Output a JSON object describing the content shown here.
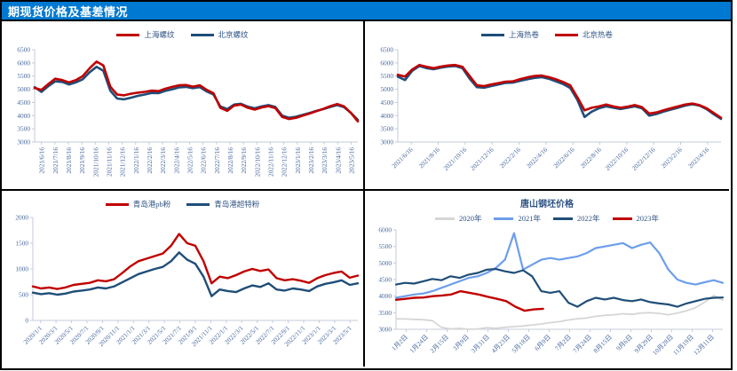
{
  "header": {
    "title": "期现货价格及基差情况"
  },
  "colors": {
    "header_bg": "#0079D2",
    "red": "#C00000",
    "navy": "#1F4E79",
    "cornflower": "#6D9EEB",
    "gray_2020": "#D6D6D6",
    "axis_line": "#C4CBD8",
    "tick_text": "#46679F",
    "legend_text": "#2F5384",
    "border": "#000000"
  },
  "chart_data": [
    {
      "type": "line",
      "name": "rebar-spot-price",
      "ylabel": "",
      "xlabel": "",
      "ylim": [
        3000,
        6500
      ],
      "yticks": [
        3000,
        3500,
        4000,
        4500,
        5000,
        5500,
        6000,
        6500
      ],
      "x_label_rotation": 90,
      "x_labels": [
        "2021/6/16",
        "2021/7/16",
        "2021/8/16",
        "2021/9/16",
        "2021/10/16",
        "2021/11/16",
        "2021/12/16",
        "2022/1/16",
        "2022/2/16",
        "2022/3/16",
        "2022/4/16",
        "2022/5/16",
        "2022/6/16",
        "2022/7/16",
        "2022/8/16",
        "2022/9/16",
        "2022/10/16",
        "2022/11/16",
        "2022/12/16",
        "2023/1/16",
        "2023/2/16",
        "2023/3/16",
        "2023/4/16",
        "2023/5/16"
      ],
      "series": [
        {
          "name": "上海螺纹",
          "color": "#C00000",
          "width": 2.6,
          "z": 2,
          "values": [
            5050,
            4980,
            5200,
            5400,
            5350,
            5260,
            5350,
            5500,
            5800,
            6050,
            5900,
            5100,
            4800,
            4770,
            4830,
            4870,
            4900,
            4950,
            4930,
            5020,
            5090,
            5150,
            5160,
            5100,
            5150,
            4980,
            4850,
            4300,
            4180,
            4380,
            4420,
            4300,
            4230,
            4310,
            4360,
            4290,
            3950,
            3870,
            3920,
            4000,
            4080,
            4170,
            4260,
            4360,
            4440,
            4350,
            4100,
            3780
          ]
        },
        {
          "name": "北京螺纹",
          "color": "#1F4E79",
          "width": 2.6,
          "z": 1,
          "values": [
            5080,
            4900,
            5120,
            5300,
            5280,
            5180,
            5260,
            5380,
            5650,
            5850,
            5700,
            4950,
            4650,
            4620,
            4680,
            4750,
            4800,
            4860,
            4850,
            4940,
            5000,
            5070,
            5090,
            5040,
            5080,
            4920,
            4800,
            4350,
            4250,
            4420,
            4450,
            4340,
            4280,
            4350,
            4400,
            4330,
            4000,
            3920,
            3960,
            4030,
            4100,
            4180,
            4250,
            4330,
            4400,
            4320,
            4100,
            3840
          ]
        }
      ]
    },
    {
      "type": "line",
      "name": "hot-coil-spot-price",
      "ylabel": "",
      "xlabel": "",
      "ylim": [
        3000,
        6500
      ],
      "yticks": [
        3000,
        3500,
        4000,
        4500,
        5000,
        5500,
        6000,
        6500
      ],
      "x_label_rotation": 45,
      "x_labels": [
        "2021/6/16",
        "2021/8/16",
        "2021/10/16",
        "2021/12/16",
        "2022/2/16",
        "2022/4/16",
        "2022/6/16",
        "2022/8/16",
        "2022/10/16",
        "2022/12/16",
        "2023/2/16",
        "2023/4/16"
      ],
      "series": [
        {
          "name": "上海热卷",
          "color": "#1F4E79",
          "width": 2.6,
          "z": 1,
          "values": [
            5480,
            5350,
            5700,
            5880,
            5800,
            5760,
            5820,
            5860,
            5880,
            5800,
            5400,
            5080,
            5060,
            5120,
            5180,
            5240,
            5250,
            5320,
            5380,
            5430,
            5460,
            5400,
            5300,
            5200,
            5050,
            4600,
            3950,
            4150,
            4280,
            4350,
            4300,
            4250,
            4300,
            4350,
            4280,
            4000,
            4060,
            4150,
            4230,
            4300,
            4380,
            4430,
            4380,
            4250,
            4050,
            3880
          ]
        },
        {
          "name": "北京热卷",
          "color": "#C00000",
          "width": 2.6,
          "z": 2,
          "values": [
            5550,
            5480,
            5750,
            5920,
            5850,
            5800,
            5860,
            5900,
            5920,
            5850,
            5500,
            5150,
            5120,
            5180,
            5230,
            5290,
            5300,
            5380,
            5450,
            5500,
            5520,
            5460,
            5380,
            5280,
            5150,
            4700,
            4200,
            4300,
            4350,
            4420,
            4350,
            4300,
            4340,
            4400,
            4320,
            4080,
            4120,
            4200,
            4280,
            4350,
            4420,
            4460,
            4400,
            4280,
            4100,
            3920
          ]
        }
      ]
    },
    {
      "type": "line",
      "name": "qingdao-port-iron-ore-price",
      "ylabel": "",
      "xlabel": "",
      "ylim": [
        0,
        2000
      ],
      "yticks": [
        0,
        500,
        1000,
        1500,
        2000
      ],
      "x_label_rotation": 45,
      "x_labels": [
        "2020/1/1",
        "2020/3/1",
        "2020/5/1",
        "2020/7/1",
        "2020/9/1",
        "2020/11/1",
        "2021/1/1",
        "2021/3/1",
        "2021/5/1",
        "2021/7/1",
        "2021/9/1",
        "2021/11/1",
        "2022/1/1",
        "2022/3/1",
        "2022/5/1",
        "2022/7/1",
        "2022/9/1",
        "2022/11/1",
        "2023/1/1",
        "2023/3/1",
        "2023/5/1"
      ],
      "series": [
        {
          "name": "青岛港pb粉",
          "color": "#C00000",
          "width": 2.4,
          "z": 2,
          "values": [
            660,
            620,
            640,
            610,
            640,
            690,
            710,
            730,
            780,
            760,
            800,
            920,
            1050,
            1150,
            1200,
            1250,
            1300,
            1450,
            1680,
            1500,
            1450,
            1150,
            720,
            850,
            820,
            880,
            950,
            1000,
            960,
            990,
            820,
            780,
            800,
            770,
            730,
            820,
            880,
            920,
            950,
            830,
            870
          ]
        },
        {
          "name": "青岛港超特粉",
          "color": "#1F4E79",
          "width": 2.4,
          "z": 1,
          "values": [
            540,
            510,
            530,
            500,
            520,
            560,
            580,
            600,
            640,
            620,
            660,
            740,
            820,
            900,
            950,
            1000,
            1040,
            1150,
            1320,
            1180,
            1100,
            850,
            470,
            600,
            570,
            550,
            620,
            680,
            650,
            720,
            600,
            580,
            620,
            600,
            570,
            660,
            710,
            740,
            780,
            690,
            720
          ]
        }
      ]
    },
    {
      "type": "line",
      "name": "tangshan-billet-price-seasonal",
      "title": "唐山钢坯价格",
      "ylabel": "",
      "xlabel": "",
      "ylim": [
        3000,
        6000
      ],
      "yticks": [
        3000,
        3500,
        4000,
        4500,
        5000,
        5500,
        6000
      ],
      "x_label_rotation": 45,
      "x_labels": [
        "1月2日",
        "1月24日",
        "2月15日",
        "3月9日",
        "3月31日",
        "4月23日",
        "5月18日",
        "6月9日",
        "7月2日",
        "7月24日",
        "8月15日",
        "9月6日",
        "9月29日",
        "10月28日",
        "11月19日",
        "12月11日"
      ],
      "series": [
        {
          "name": "2020年",
          "color": "#D6D6D6",
          "width": 1.8,
          "z": 1,
          "values": [
            3320,
            3310,
            3300,
            3290,
            3260,
            3060,
            3010,
            3030,
            3000,
            3010,
            3050,
            3030,
            3060,
            3080,
            3100,
            3130,
            3160,
            3200,
            3230,
            3280,
            3320,
            3340,
            3390,
            3420,
            3440,
            3470,
            3450,
            3490,
            3500,
            3480,
            3440,
            3490,
            3560,
            3650,
            3820,
            4020,
            3880
          ]
        },
        {
          "name": "2021年",
          "color": "#6D9EEB",
          "width": 2.2,
          "z": 2,
          "values": [
            3950,
            4000,
            4050,
            4080,
            4150,
            4250,
            4350,
            4450,
            4550,
            4600,
            4700,
            4850,
            5100,
            5900,
            4800,
            4950,
            5100,
            5150,
            5100,
            5150,
            5200,
            5300,
            5450,
            5500,
            5550,
            5600,
            5450,
            5550,
            5620,
            5300,
            4800,
            4500,
            4400,
            4350,
            4420,
            4480,
            4400
          ]
        },
        {
          "name": "2022年",
          "color": "#1F4E79",
          "width": 2.2,
          "z": 3,
          "values": [
            4350,
            4400,
            4380,
            4450,
            4520,
            4480,
            4600,
            4550,
            4650,
            4700,
            4800,
            4820,
            4750,
            4700,
            4780,
            4600,
            4150,
            4100,
            4150,
            3800,
            3680,
            3850,
            3950,
            3900,
            3950,
            3880,
            3850,
            3900,
            3820,
            3780,
            3750,
            3680,
            3780,
            3850,
            3920,
            3950,
            3960
          ]
        },
        {
          "name": "2023年",
          "color": "#C00000",
          "width": 2.4,
          "z": 4,
          "x_end": 0.45,
          "values": [
            3890,
            3920,
            3950,
            3960,
            4000,
            4020,
            4050,
            4150,
            4100,
            4050,
            3980,
            3920,
            3850,
            3680,
            3560,
            3600,
            3620
          ]
        }
      ]
    }
  ]
}
